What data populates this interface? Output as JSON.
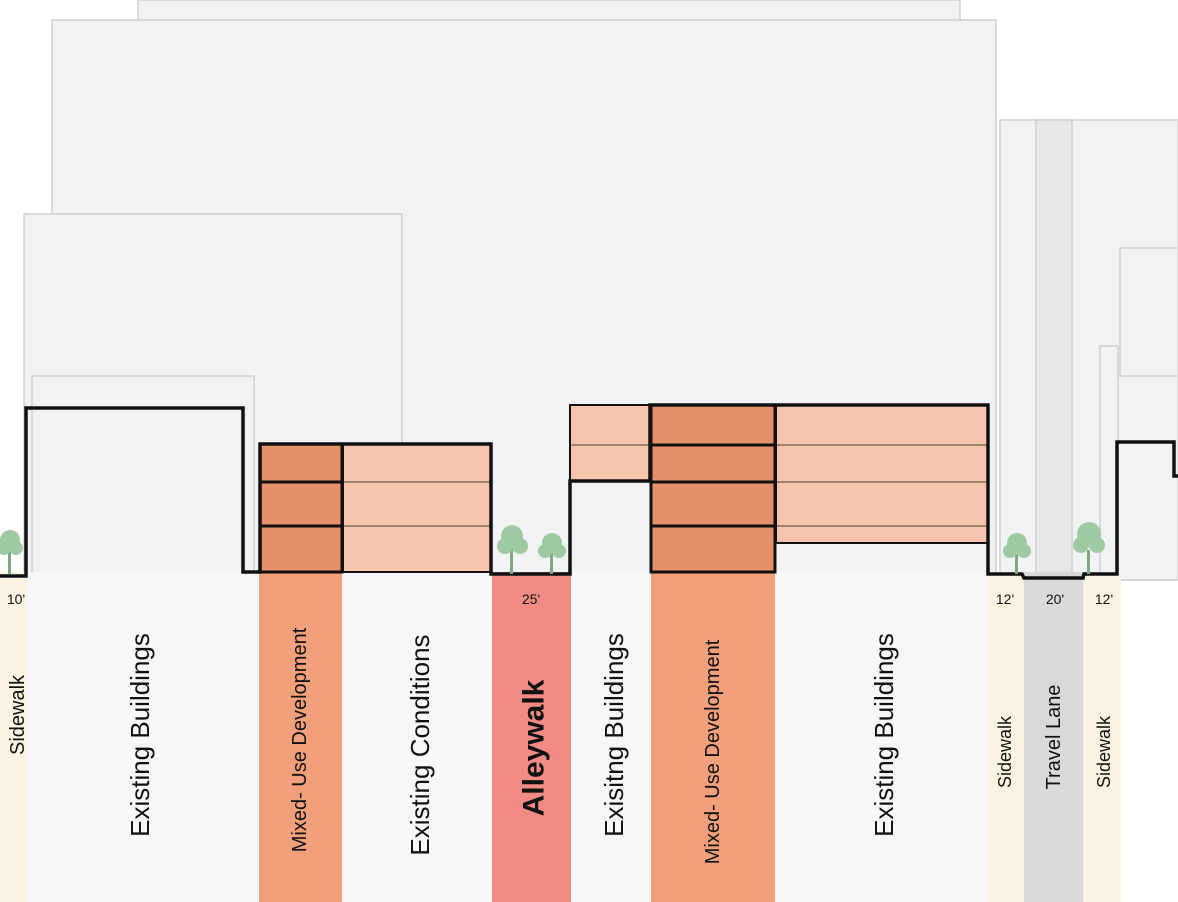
{
  "diagram": {
    "zones": [
      {
        "label": "Sidewalk",
        "dimension": "10'",
        "color": "#fbf3e1",
        "text_color": "#8c8c8c"
      },
      {
        "label": "Existing Buildings",
        "dimension": "",
        "color": "#f6f7f8",
        "text_color": "#111111"
      },
      {
        "label": "Mixed- Use Development",
        "dimension": "",
        "color": "#f2a07c",
        "text_color": "#111111"
      },
      {
        "label": "Existing Conditions",
        "dimension": "",
        "color": "#f6f7f8",
        "text_color": "#111111"
      },
      {
        "label": "Alleywalk",
        "dimension": "25'",
        "color": "#f28b84",
        "text_color": "#111111"
      },
      {
        "label": "Exisitng Buildings",
        "dimension": "",
        "color": "#f6f7f8",
        "text_color": "#111111"
      },
      {
        "label": "Mixed- Use Development",
        "dimension": "",
        "color": "#f2a07c",
        "text_color": "#111111"
      },
      {
        "label": "Existing Buildings",
        "dimension": "",
        "color": "#f6f7f8",
        "text_color": "#111111"
      },
      {
        "label": "Sidewalk",
        "dimension": "12'",
        "color": "#fbf3e1",
        "text_color": "#111111"
      },
      {
        "label": "Travel Lane",
        "dimension": "20'",
        "color": "#d9d9db",
        "text_color": "#111111"
      },
      {
        "label": "Sidewalk",
        "dimension": "12'",
        "color": "#fbf3e1",
        "text_color": "#111111"
      }
    ],
    "colors": {
      "mass_dark": "#e4906b",
      "mass_light": "#f6c4ad",
      "background_building": "#f1f2f3",
      "outline": "#111111",
      "tree": "#9fc9a2"
    }
  }
}
